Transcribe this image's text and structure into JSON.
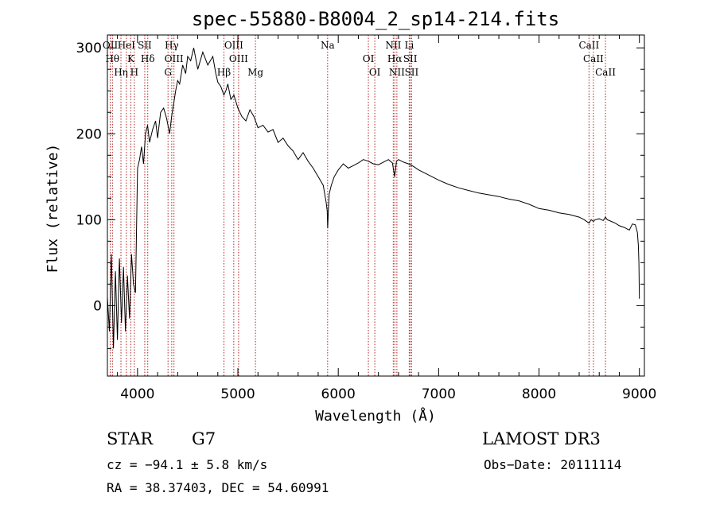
{
  "chart_data": {
    "type": "line",
    "title": "spec-55880-B8004_2_sp14-214.fits",
    "xlabel": "Wavelength (Å)",
    "ylabel": "Flux (relative)",
    "xlim": [
      3700,
      9050
    ],
    "ylim": [
      -82,
      315
    ],
    "x_ticks": [
      4000,
      5000,
      6000,
      7000,
      8000,
      9000
    ],
    "y_ticks": [
      0,
      100,
      200,
      300
    ],
    "grid": false,
    "series": [
      {
        "x": [
          3700,
          3720,
          3740,
          3760,
          3780,
          3800,
          3820,
          3840,
          3860,
          3880,
          3900,
          3920,
          3940,
          3960,
          3980,
          4000,
          4020,
          4040,
          4060,
          4080,
          4100,
          4120,
          4150,
          4180,
          4200,
          4230,
          4260,
          4290,
          4320,
          4340,
          4360,
          4380,
          4400,
          4420,
          4450,
          4480,
          4500,
          4530,
          4560,
          4600,
          4650,
          4700,
          4750,
          4780,
          4800,
          4830,
          4860,
          4880,
          4900,
          4930,
          4960,
          5000,
          5040,
          5080,
          5120,
          5160,
          5200,
          5250,
          5300,
          5350,
          5400,
          5450,
          5500,
          5550,
          5600,
          5650,
          5700,
          5750,
          5800,
          5850,
          5880,
          5890,
          5895,
          5900,
          5910,
          5930,
          5960,
          6000,
          6050,
          6100,
          6150,
          6200,
          6250,
          6300,
          6350,
          6400,
          6450,
          6500,
          6540,
          6562,
          6580,
          6600,
          6650,
          6700,
          6750,
          6800,
          6900,
          7000,
          7100,
          7200,
          7300,
          7400,
          7500,
          7600,
          7700,
          7800,
          7900,
          8000,
          8100,
          8200,
          8300,
          8400,
          8450,
          8498,
          8520,
          8542,
          8560,
          8600,
          8640,
          8662,
          8680,
          8720,
          8760,
          8800,
          8850,
          8880,
          8900,
          8930,
          8960,
          8980,
          8990,
          8995,
          9000
        ],
        "y": [
          10,
          -30,
          60,
          -50,
          40,
          -40,
          55,
          -20,
          45,
          -30,
          35,
          -15,
          60,
          25,
          15,
          160,
          170,
          185,
          165,
          200,
          210,
          190,
          205,
          215,
          195,
          225,
          230,
          218,
          200,
          220,
          235,
          250,
          262,
          258,
          280,
          270,
          290,
          285,
          300,
          275,
          295,
          280,
          290,
          270,
          260,
          255,
          245,
          250,
          258,
          240,
          245,
          230,
          220,
          215,
          228,
          220,
          207,
          210,
          202,
          205,
          190,
          195,
          186,
          180,
          170,
          178,
          168,
          160,
          150,
          140,
          120,
          110,
          90,
          108,
          130,
          140,
          150,
          158,
          165,
          160,
          163,
          166,
          170,
          168,
          165,
          164,
          167,
          170,
          166,
          150,
          168,
          170,
          167,
          165,
          162,
          158,
          152,
          146,
          141,
          137,
          134,
          131,
          129,
          127,
          124,
          122,
          118,
          113,
          111,
          108,
          106,
          103,
          100,
          96,
          100,
          98,
          100,
          101,
          99,
          103,
          100,
          98,
          96,
          93,
          91,
          89,
          88,
          95,
          94,
          85,
          70,
          50,
          8
        ]
      }
    ],
    "lines": [
      {
        "x": 3728,
        "labels": [
          "OII"
        ]
      },
      {
        "x": 3750,
        "labels": [
          "Hθ"
        ]
      },
      {
        "x": 3835,
        "labels": [
          "Hη"
        ]
      },
      {
        "x": 3889,
        "labels": [
          "HeI"
        ]
      },
      {
        "x": 3934,
        "labels": [
          "K"
        ]
      },
      {
        "x": 3968,
        "labels": [
          "H"
        ]
      },
      {
        "x": 4072,
        "labels": [
          "SII"
        ]
      },
      {
        "x": 4102,
        "labels": [
          "Hδ"
        ]
      },
      {
        "x": 4304,
        "labels": [
          "G"
        ]
      },
      {
        "x": 4341,
        "labels": [
          "Hγ"
        ]
      },
      {
        "x": 4363,
        "labels": [
          "OIII"
        ]
      },
      {
        "x": 4861,
        "labels": [
          "Hβ"
        ]
      },
      {
        "x": 4959,
        "labels": [
          "OIII"
        ]
      },
      {
        "x": 5007,
        "labels": [
          "OIII"
        ]
      },
      {
        "x": 5175,
        "labels": [
          "Mg"
        ]
      },
      {
        "x": 5894,
        "labels": [
          "Na"
        ]
      },
      {
        "x": 6300,
        "labels": [
          "OI"
        ]
      },
      {
        "x": 6364,
        "labels": [
          "OI"
        ]
      },
      {
        "x": 6548,
        "labels": [
          "NII"
        ]
      },
      {
        "x": 6563,
        "labels": [
          "Hα"
        ]
      },
      {
        "x": 6584,
        "labels": [
          "NII"
        ]
      },
      {
        "x": 6707,
        "labels": [
          "Li"
        ]
      },
      {
        "x": 6717,
        "labels": [
          "SII"
        ]
      },
      {
        "x": 6731,
        "labels": [
          "SII"
        ]
      },
      {
        "x": 8498,
        "labels": [
          "CaII"
        ]
      },
      {
        "x": 8542,
        "labels": [
          "CaII"
        ]
      },
      {
        "x": 8662,
        "labels": [
          "CaII"
        ]
      }
    ],
    "line_color": "#b22222"
  },
  "info": {
    "object_class": "STAR",
    "subclass": "G7",
    "survey": "LAMOST DR3",
    "cz": "cz = −94.1 ± 5.8 km/s",
    "obs_date": "Obs−Date: 20111114",
    "coords": "RA =  38.37403, DEC =  54.60991"
  }
}
